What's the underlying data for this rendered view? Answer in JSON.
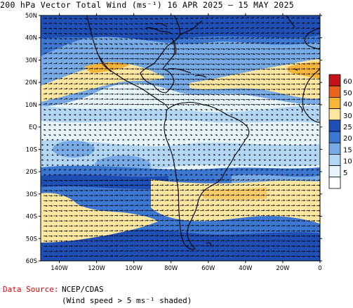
{
  "title": "200 hPa Vector Total Wind (ms⁻¹) 16 APR 2025 — 15 MAY 2025",
  "footer": {
    "source_label": "Data Source:",
    "source_value": "NCEP/CDAS",
    "note": "(Wind speed > 5 ms⁻¹ shaded)"
  },
  "axes": {
    "lat_labels": [
      "50N",
      "40N",
      "30N",
      "20N",
      "10N",
      "EQ",
      "10S",
      "20S",
      "30S",
      "40S",
      "50S",
      "60S"
    ],
    "lon_labels": [
      "140W",
      "120W",
      "100W",
      "80W",
      "60W",
      "40W",
      "20W",
      "0"
    ]
  },
  "colorbar": {
    "labels": [
      "60",
      "50",
      "40",
      "30",
      "25",
      "20",
      "15",
      "10",
      "5"
    ],
    "colors": [
      "#c4141a",
      "#e8641e",
      "#f5b43c",
      "#fce6a0",
      "#1f4fb4",
      "#3c78d2",
      "#78aae6",
      "#b4d6f5",
      "#e6f5fa",
      "#ffffff"
    ]
  },
  "map": {
    "region": "Western Hemisphere, 60S-50N, 150W-0",
    "features": [
      "continent outlines",
      "wind vector arrows",
      "wind speed shading"
    ]
  }
}
